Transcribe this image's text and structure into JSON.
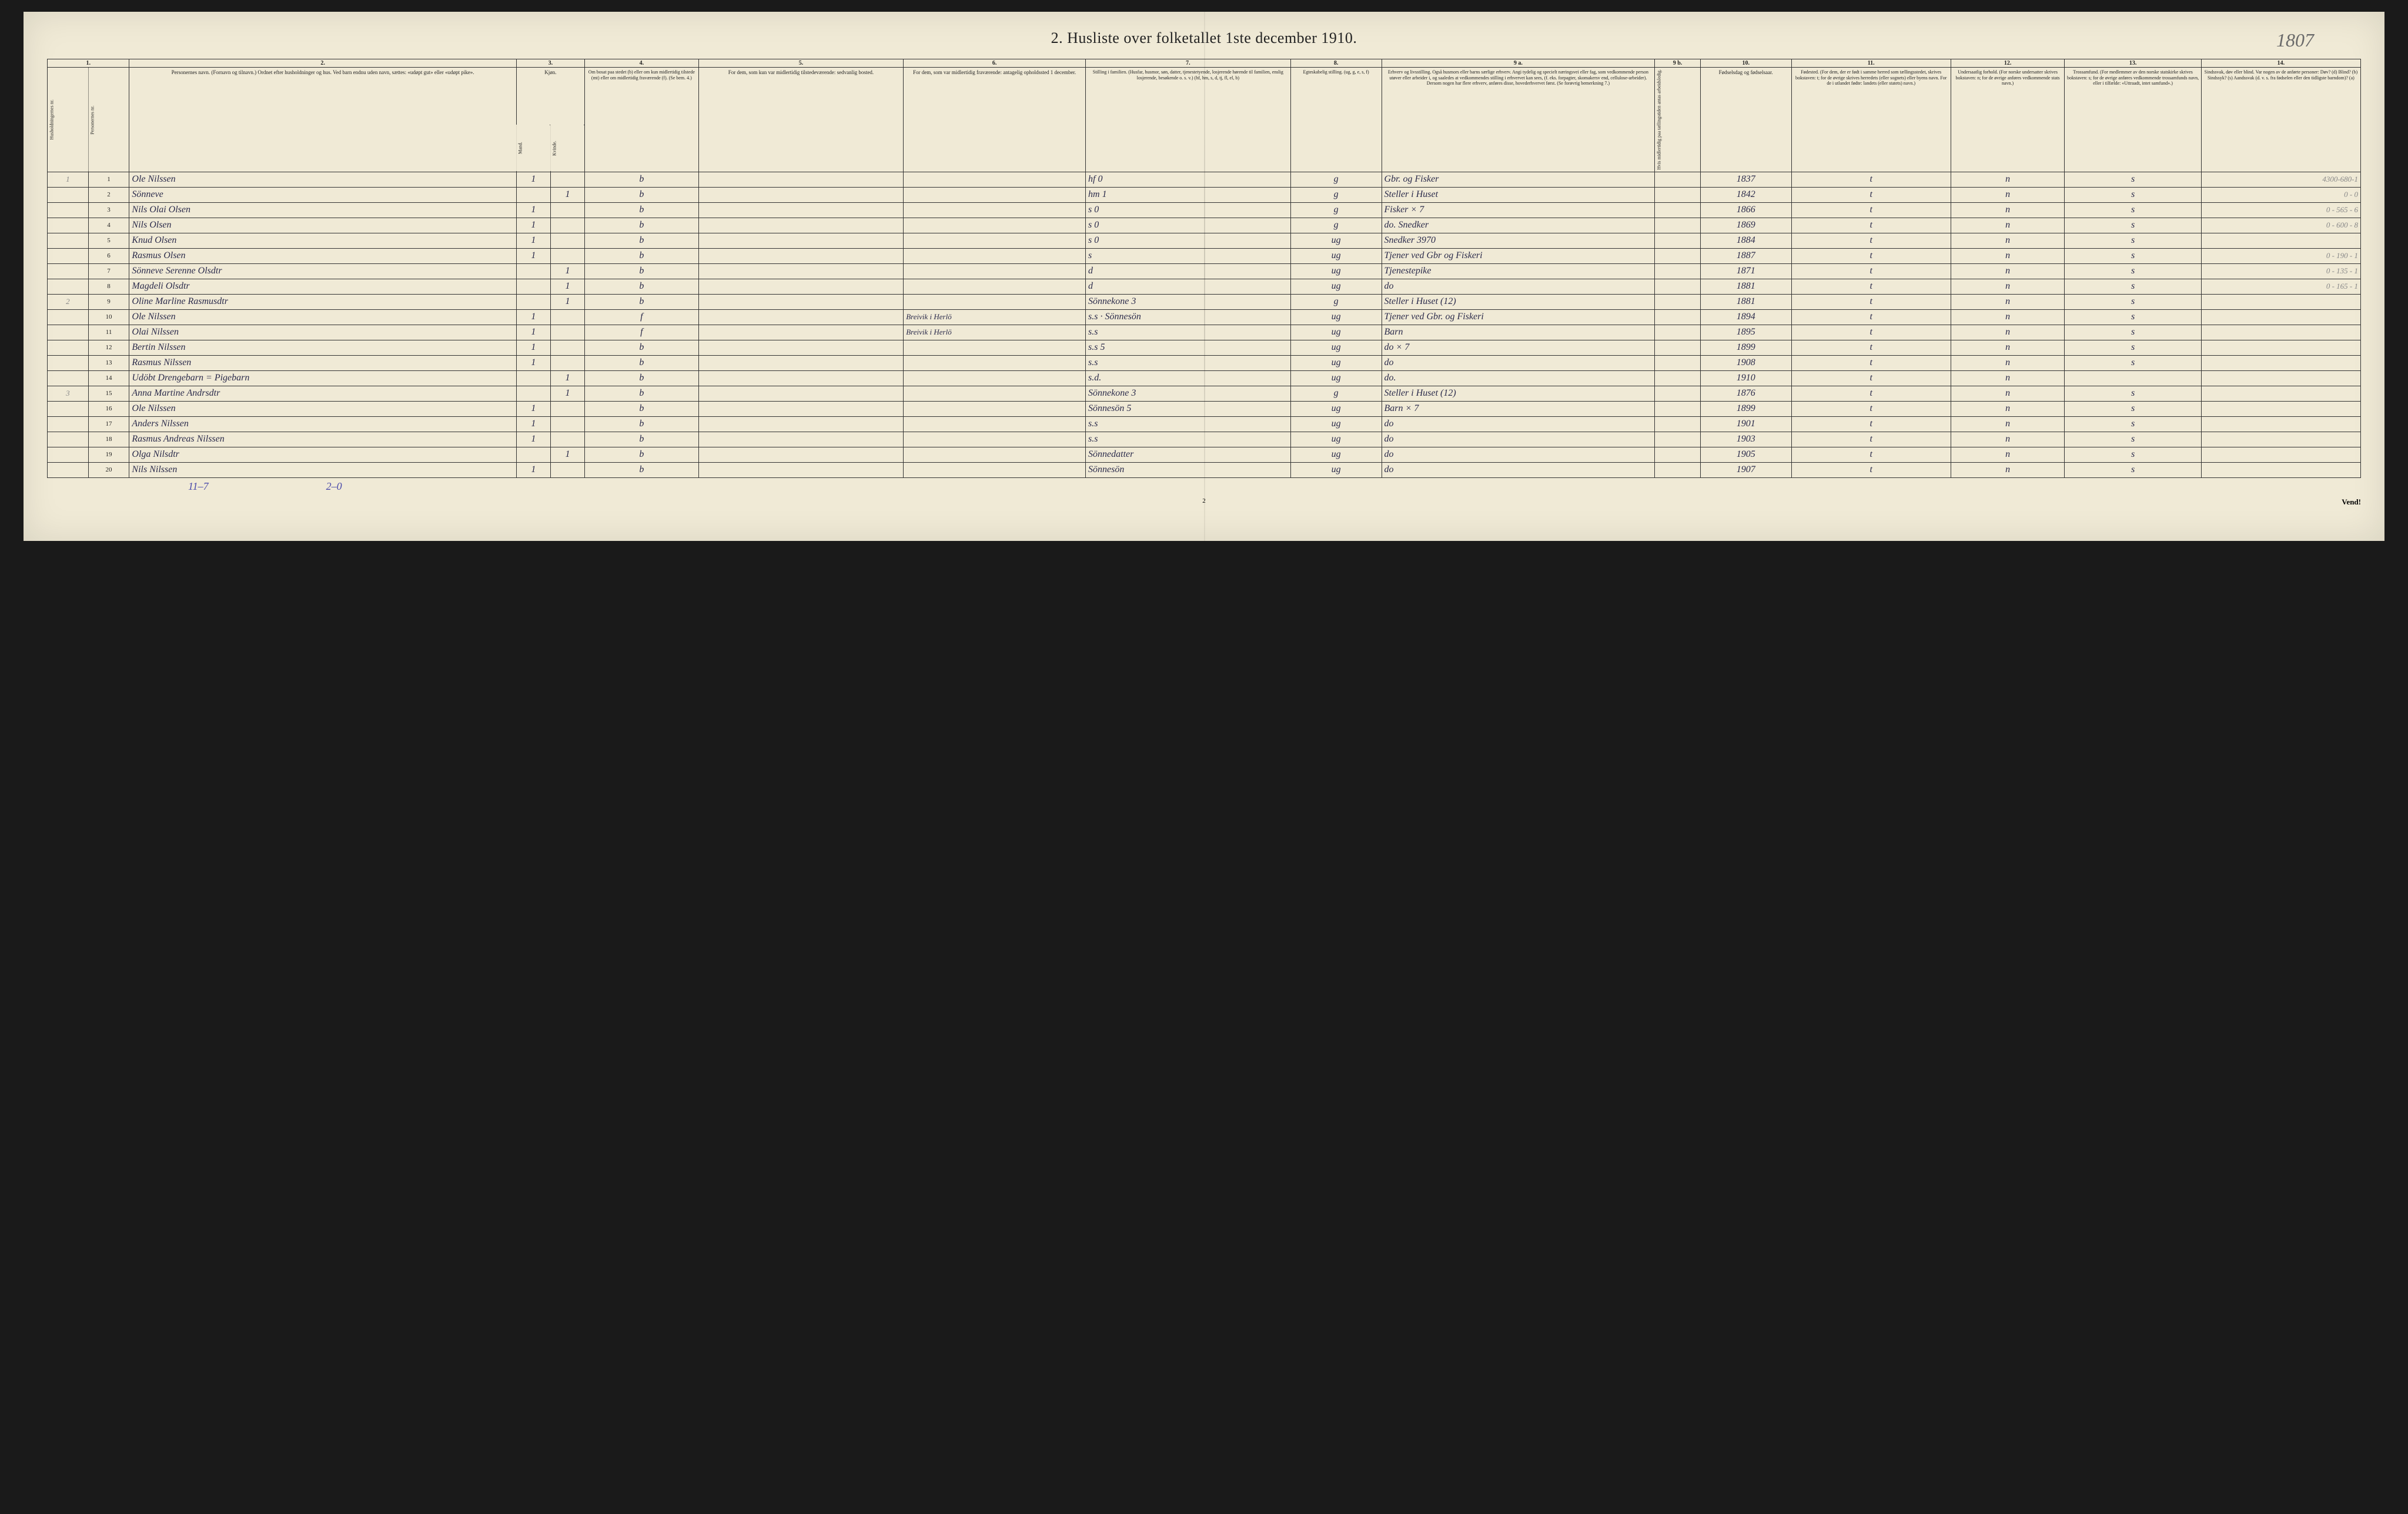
{
  "title": "2. Husliste over folketallet 1ste december 1910.",
  "handwrite_number": "1807",
  "page_number": "2",
  "vend": "Vend!",
  "bottom_left": "11–7",
  "bottom_mid": "2–0",
  "col_nums": [
    "1.",
    "2.",
    "3.",
    "4.",
    "5.",
    "6.",
    "7.",
    "8.",
    "9 a.",
    "9 b.",
    "10.",
    "11.",
    "12.",
    "13.",
    "14."
  ],
  "headers": {
    "c1a": "Husholdningernes nr.",
    "c1b": "Personernes nr.",
    "c2": "Personernes navn.\n(Fornavn og tilnavn.)\nOrdnet efter husholdninger og hus.\nVed barn endnu uden navn, sættes: «udøpt gut» eller «udøpt pike».",
    "c3": "Kjøn.",
    "c3m": "Mand.",
    "c3k": "Kvinde.",
    "c3mk": "m.  k.",
    "c4": "Om bosat paa stedet (b) eller om kun midlertidig tilstede (mt) eller om midlertidig fraværende (f).\n(Se bem. 4.)",
    "c5": "For dem, som kun var midlertidig tilstedeværende:\nsedvanlig bosted.",
    "c6": "For dem, som var midlertidig fraværende:\nantagelig opholdssted 1 december.",
    "c7": "Stilling i familien.\n(Husfar, husmor, søn, datter, tjenestetyende, losjerende hørende til familien, enslig losjerende, besøkende o. s. v.)\n(hf, hm, s, d, tj, fl, el, b)",
    "c8": "Egteskabelig stilling.\n(ug, g, e, s, f)",
    "c9a": "Erhverv og livsstilling.\nOgså husmors eller barns særlige erhverv. Angi tydelig og specielt næringsvei eller fag, som vedkommende person utøver eller arbeider i, og saaledes at vedkommendes stilling i erhvervet kan sees, (f. eks. forpagter, skomakersv end, cellulose-arbeider). Dersom nogen har flere erhverv, anføres disse, hovederhvervet først.\n(Se forøvrig bemerkning 7.)",
    "c9b": "Hvis midlertidig paa tællingstiden antas arbeidsledig.",
    "c10": "Fødselsdag og fødselsaar.",
    "c11": "Fødested.\n(For dem, der er født i samme herred som tællingsstedet, skrives bokstaven: t; for de øvrige skrives herredets (eller sognets) eller byens navn. For de i utlandet fødte: landets (eller statets) navn.)",
    "c12": "Undersaatlig forhold.\n(For norske undersatter skrives bokstaven: n; for de øvrige anføres vedkommende stats navn.)",
    "c13": "Trossamfund.\n(For medlemmer av den norske statskirke skrives bokstaven: s; for de øvrige anføres vedkommende trossamfunds navn, eller i tilfælde: «Uttraadt, intet samfund».)",
    "c14": "Sindssvak, døv eller blind.\nVar nogen av de anførte personer:\nDøv? (d)\nBlind? (b)\nSindssyk? (s)\nAandssvak (d. v. s. fra fødselen eller den tidligste barndom)? (a)"
  },
  "rows": [
    {
      "hnr": "1",
      "pnr": "1",
      "name": "Ole Nilssen",
      "m": "1",
      "k": "",
      "c4": "b",
      "c5": "",
      "c6": "",
      "c7": "hf        0",
      "c8": "g",
      "c9a": "Gbr. og Fisker",
      "c9b": "",
      "c10": "1837",
      "c11": "t",
      "c12": "n",
      "c13": "s",
      "note": "4300-680-1"
    },
    {
      "hnr": "",
      "pnr": "2",
      "name": "Sönneve",
      "m": "",
      "k": "1",
      "c4": "b",
      "c5": "",
      "c6": "",
      "c7": "hm        1",
      "c8": "g",
      "c9a": "Steller i Huset",
      "c9b": "",
      "c10": "1842",
      "c11": "t",
      "c12": "n",
      "c13": "s",
      "note": "0 - 0"
    },
    {
      "hnr": "",
      "pnr": "3",
      "name": "Nils Olai Olsen",
      "m": "1",
      "k": "",
      "c4": "b",
      "c5": "",
      "c6": "",
      "c7": "s          0",
      "c8": "g",
      "c9a": "Fisker  × 7",
      "c9b": "",
      "c10": "1866",
      "c11": "t",
      "c12": "n",
      "c13": "s",
      "note": "0 - 565 - 6"
    },
    {
      "hnr": "",
      "pnr": "4",
      "name": "Nils Olsen",
      "m": "1",
      "k": "",
      "c4": "b",
      "c5": "",
      "c6": "",
      "c7": "s          0",
      "c8": "g",
      "c9a": "do.   Snedker",
      "c9b": "",
      "c10": "1869",
      "c11": "t",
      "c12": "n",
      "c13": "s",
      "note": "0 - 600 - 8"
    },
    {
      "hnr": "",
      "pnr": "5",
      "name": "Knud Olsen",
      "m": "1",
      "k": "",
      "c4": "b",
      "c5": "",
      "c6": "",
      "c7": "s          0",
      "c8": "ug",
      "c9a": "Snedker 3970",
      "c9b": "",
      "c10": "1884",
      "c11": "t",
      "c12": "n",
      "c13": "s",
      "note": ""
    },
    {
      "hnr": "",
      "pnr": "6",
      "name": "Rasmus Olsen",
      "m": "1",
      "k": "",
      "c4": "b",
      "c5": "",
      "c6": "",
      "c7": "s",
      "c8": "ug",
      "c9a": "Tjener ved Gbr og Fiskeri",
      "c9b": "",
      "c10": "1887",
      "c11": "t",
      "c12": "n",
      "c13": "s",
      "note": "0 - 190 - 1"
    },
    {
      "hnr": "",
      "pnr": "7",
      "name": "Sönneve Serenne Olsdtr",
      "m": "",
      "k": "1",
      "c4": "b",
      "c5": "",
      "c6": "",
      "c7": "d",
      "c8": "ug",
      "c9a": "Tjenestepike",
      "c9b": "",
      "c10": "1871",
      "c11": "t",
      "c12": "n",
      "c13": "s",
      "note": "0 - 135 - 1"
    },
    {
      "hnr": "",
      "pnr": "8",
      "name": "Magdeli Olsdtr",
      "m": "",
      "k": "1",
      "c4": "b",
      "c5": "",
      "c6": "",
      "c7": "d",
      "c8": "ug",
      "c9a": "do",
      "c9b": "",
      "c10": "1881",
      "c11": "t",
      "c12": "n",
      "c13": "s",
      "note": "0 - 165 - 1"
    },
    {
      "hnr": "2",
      "pnr": "9",
      "name": "Oline Marline Rasmusdtr",
      "m": "",
      "k": "1",
      "c4": "b",
      "c5": "",
      "c6": "",
      "c7": "Sönnekone  3",
      "c8": "g",
      "c9a": "Steller i Huset   (12)",
      "c9b": "",
      "c10": "1881",
      "c11": "t",
      "c12": "n",
      "c13": "s",
      "note": ""
    },
    {
      "hnr": "",
      "pnr": "10",
      "name": "Ole Nilssen",
      "m": "1",
      "k": "",
      "c4": "f",
      "c5": "",
      "c6": "Breivik i Herlö",
      "c7": "s.s · Sönnesön",
      "c8": "ug",
      "c9a": "Tjener ved Gbr. og Fiskeri",
      "c9b": "",
      "c10": "1894",
      "c11": "t",
      "c12": "n",
      "c13": "s",
      "note": ""
    },
    {
      "hnr": "",
      "pnr": "11",
      "name": "Olai Nilssen",
      "m": "1",
      "k": "",
      "c4": "f",
      "c5": "",
      "c6": "Breivik i Herlö",
      "c7": "s.s",
      "c8": "ug",
      "c9a": "Barn",
      "c9b": "",
      "c10": "1895",
      "c11": "t",
      "c12": "n",
      "c13": "s",
      "note": ""
    },
    {
      "hnr": "",
      "pnr": "12",
      "name": "Bertin Nilssen",
      "m": "1",
      "k": "",
      "c4": "b",
      "c5": "",
      "c6": "",
      "c7": "s.s        5",
      "c8": "ug",
      "c9a": "do × 7",
      "c9b": "",
      "c10": "1899",
      "c11": "t",
      "c12": "n",
      "c13": "s",
      "note": ""
    },
    {
      "hnr": "",
      "pnr": "13",
      "name": "Rasmus Nilssen",
      "m": "1",
      "k": "",
      "c4": "b",
      "c5": "",
      "c6": "",
      "c7": "s.s",
      "c8": "ug",
      "c9a": "do",
      "c9b": "",
      "c10": "1908",
      "c11": "t",
      "c12": "n",
      "c13": "s",
      "note": ""
    },
    {
      "hnr": "",
      "pnr": "14",
      "name": "Udöbt Drengebarn = Pigebarn",
      "m": "",
      "k": "1",
      "c4": "b",
      "c5": "",
      "c6": "",
      "c7": "s.d.",
      "c8": "ug",
      "c9a": "do.",
      "c9b": "",
      "c10": "1910",
      "c11": "t",
      "c12": "n",
      "c13": "",
      "note": ""
    },
    {
      "hnr": "3",
      "pnr": "15",
      "name": "Anna Martine Andrsdtr",
      "m": "",
      "k": "1",
      "c4": "b",
      "c5": "",
      "c6": "",
      "c7": "Sönnekone  3",
      "c8": "g",
      "c9a": "Steller i Huset   (12)",
      "c9b": "",
      "c10": "1876",
      "c11": "t",
      "c12": "n",
      "c13": "s",
      "note": ""
    },
    {
      "hnr": "",
      "pnr": "16",
      "name": "Ole Nilssen",
      "m": "1",
      "k": "",
      "c4": "b",
      "c5": "",
      "c6": "",
      "c7": "Sönnesön    5",
      "c8": "ug",
      "c9a": "Barn   × 7",
      "c9b": "",
      "c10": "1899",
      "c11": "t",
      "c12": "n",
      "c13": "s",
      "note": ""
    },
    {
      "hnr": "",
      "pnr": "17",
      "name": "Anders Nilssen",
      "m": "1",
      "k": "",
      "c4": "b",
      "c5": "",
      "c6": "",
      "c7": "s.s",
      "c8": "ug",
      "c9a": "do",
      "c9b": "",
      "c10": "1901",
      "c11": "t",
      "c12": "n",
      "c13": "s",
      "note": ""
    },
    {
      "hnr": "",
      "pnr": "18",
      "name": "Rasmus Andreas Nilssen",
      "m": "1",
      "k": "",
      "c4": "b",
      "c5": "",
      "c6": "",
      "c7": "s.s",
      "c8": "ug",
      "c9a": "do",
      "c9b": "",
      "c10": "1903",
      "c11": "t",
      "c12": "n",
      "c13": "s",
      "note": ""
    },
    {
      "hnr": "",
      "pnr": "19",
      "name": "Olga Nilsdtr",
      "m": "",
      "k": "1",
      "c4": "b",
      "c5": "",
      "c6": "",
      "c7": "Sönnedatter",
      "c8": "ug",
      "c9a": "do",
      "c9b": "",
      "c10": "1905",
      "c11": "t",
      "c12": "n",
      "c13": "s",
      "note": ""
    },
    {
      "hnr": "",
      "pnr": "20",
      "name": "Nils Nilssen",
      "m": "1",
      "k": "",
      "c4": "b",
      "c5": "",
      "c6": "",
      "c7": "Sönnesön",
      "c8": "ug",
      "c9a": "do",
      "c9b": "",
      "c10": "1907",
      "c11": "t",
      "c12": "n",
      "c13": "s",
      "note": ""
    }
  ]
}
